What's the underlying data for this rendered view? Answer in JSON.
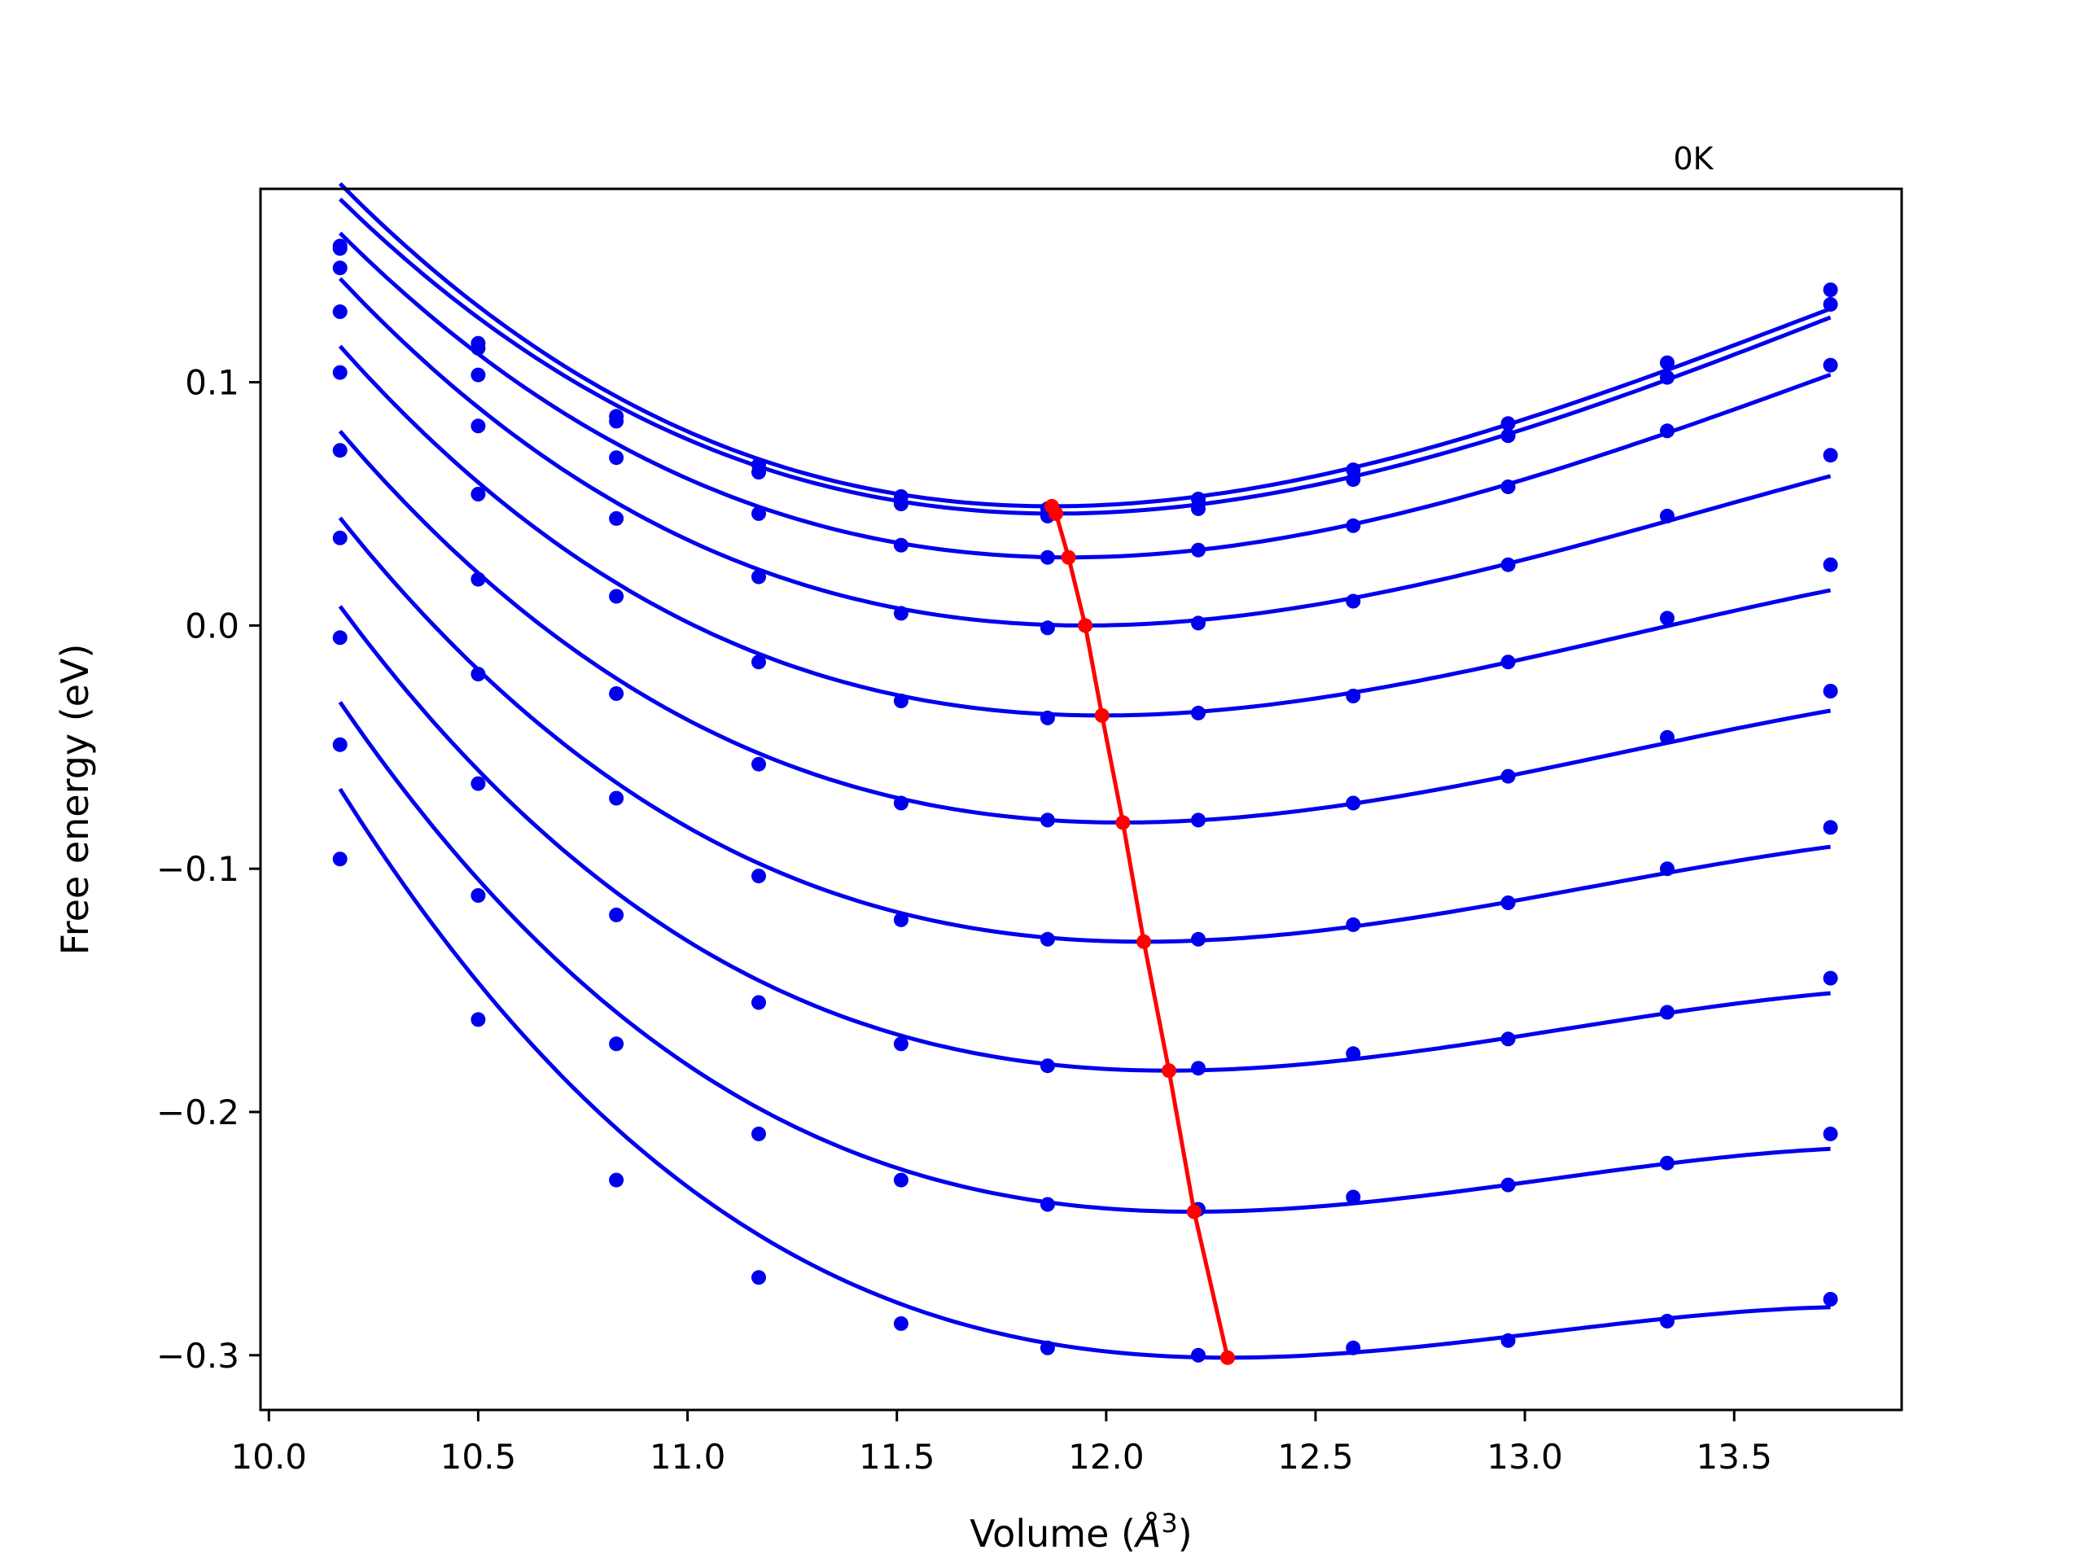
{
  "chart_data": {
    "type": "line",
    "annotation": "0K",
    "xlabel": "Volume (Å³)",
    "xlabel_prefix": "Volume (",
    "xlabel_unit_symbol": "Å",
    "xlabel_unit_power": "3",
    "xlabel_suffix": ")",
    "ylabel": "Free energy (eV)",
    "xlim": [
      9.98,
      13.9
    ],
    "ylim": [
      -0.3225,
      0.1795
    ],
    "x_ticks": [
      10.0,
      10.5,
      11.0,
      11.5,
      12.0,
      12.5,
      13.0,
      13.5
    ],
    "x_tick_labels": [
      "10.0",
      "10.5",
      "11.0",
      "11.5",
      "12.0",
      "12.5",
      "13.0",
      "13.5"
    ],
    "y_ticks": [
      0.1,
      0.0,
      -0.1,
      -0.2,
      -0.3
    ],
    "y_tick_labels": [
      "0.1",
      "0.0",
      "−0.1",
      "−0.2",
      "−0.3"
    ],
    "volumes": [
      10.17,
      10.5,
      10.83,
      11.17,
      11.51,
      11.86,
      12.22,
      12.59,
      12.96,
      13.34,
      13.73
    ],
    "grid": false,
    "colors": {
      "series": "#0000ee",
      "minimum": "#ff0000",
      "axis": "#000000"
    },
    "series": [
      {
        "data": [
          0.156,
          0.116,
          0.086,
          0.066,
          0.053,
          0.048,
          0.052,
          0.064,
          0.083,
          0.108,
          0.138
        ],
        "fit": {
          "v0": 11.87,
          "e0": 0.049,
          "a": 0.0352,
          "b": 0.0063
        }
      },
      {
        "data": [
          0.155,
          0.114,
          0.084,
          0.063,
          0.05,
          0.045,
          0.048,
          0.06,
          0.078,
          0.102,
          0.132
        ],
        "fit": {
          "v0": 11.88,
          "e0": 0.046,
          "a": 0.0343,
          "b": 0.0058
        }
      },
      {
        "data": [
          0.147,
          0.103,
          0.069,
          0.046,
          0.033,
          0.028,
          0.031,
          0.041,
          0.057,
          0.08,
          0.107
        ],
        "fit": {
          "v0": 11.91,
          "e0": 0.028,
          "a": 0.0336,
          "b": 0.006
        }
      },
      {
        "data": [
          0.129,
          0.082,
          0.044,
          0.02,
          0.005,
          -0.001,
          0.001,
          0.01,
          0.025,
          0.045,
          0.07
        ],
        "fit": {
          "v0": 11.95,
          "e0": 0.0,
          "a": 0.0322,
          "b": 0.0072
        }
      },
      {
        "data": [
          0.104,
          0.054,
          0.012,
          -0.015,
          -0.031,
          -0.038,
          -0.036,
          -0.029,
          -0.015,
          0.003,
          0.025
        ],
        "fit": {
          "v0": 11.99,
          "e0": -0.037,
          "a": 0.0311,
          "b": 0.0081
        }
      },
      {
        "data": [
          0.072,
          0.019,
          -0.028,
          -0.057,
          -0.073,
          -0.08,
          -0.08,
          -0.073,
          -0.062,
          -0.046,
          -0.027
        ],
        "fit": {
          "v0": 12.04,
          "e0": -0.081,
          "a": 0.0303,
          "b": 0.0084
        }
      },
      {
        "data": [
          0.036,
          -0.02,
          -0.071,
          -0.103,
          -0.121,
          -0.129,
          -0.129,
          -0.123,
          -0.114,
          -0.1,
          -0.083
        ],
        "fit": {
          "v0": 12.09,
          "e0": -0.13,
          "a": 0.0296,
          "b": 0.0092
        }
      },
      {
        "data": [
          -0.005,
          -0.065,
          -0.119,
          -0.155,
          -0.172,
          -0.181,
          -0.182,
          -0.176,
          -0.17,
          -0.159,
          -0.145
        ],
        "fit": {
          "v0": 12.15,
          "e0": -0.183,
          "a": 0.0287,
          "b": 0.0101
        }
      },
      {
        "data": [
          -0.049,
          -0.111,
          -0.172,
          -0.209,
          -0.228,
          -0.238,
          -0.24,
          -0.235,
          -0.23,
          -0.221,
          -0.209
        ],
        "fit": {
          "v0": 12.21,
          "e0": -0.241,
          "a": 0.0279,
          "b": 0.011
        }
      },
      {
        "data": [
          -0.096,
          -0.162,
          -0.228,
          -0.268,
          -0.287,
          -0.297,
          -0.3,
          -0.297,
          -0.294,
          -0.286,
          -0.277
        ],
        "fit": {
          "v0": 12.29,
          "e0": -0.301,
          "a": 0.027,
          "b": 0.0118
        }
      }
    ],
    "minimum_curve": {
      "x": [
        11.87,
        11.88,
        11.91,
        11.95,
        11.99,
        12.04,
        12.09,
        12.15,
        12.21,
        12.29
      ],
      "y": [
        0.049,
        0.046,
        0.028,
        0.0,
        -0.037,
        -0.081,
        -0.13,
        -0.183,
        -0.241,
        -0.301
      ]
    }
  }
}
